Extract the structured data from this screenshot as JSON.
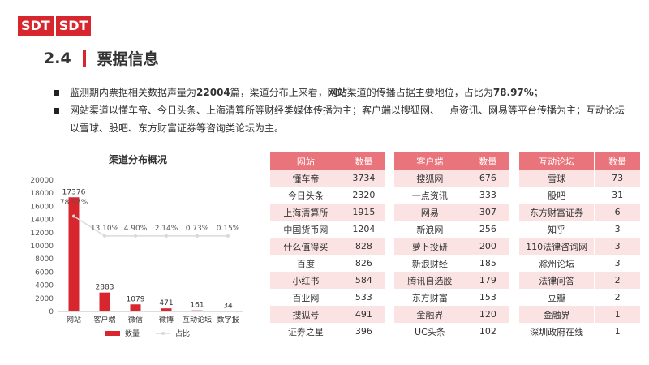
{
  "logo": [
    "SDT",
    "SDT"
  ],
  "section": {
    "number": "2.4",
    "title": "票据信息"
  },
  "bullets": {
    "b1_pre": "监测期内票据相关数据声量为",
    "b1_total": "22004",
    "b1_mid": "篇，渠道分布上来看，",
    "b1_channel": "网站",
    "b1_mid2": "渠道的传播占据主要地位，占比为",
    "b1_pct": "78.97%",
    "b1_end": "；",
    "b2": "网站渠道以懂车帝、今日头条、上海清算所等财经类媒体传播为主；客户端以搜狐网、一点资讯、网易等平台传播为主；互动论坛以雪球、股吧、东方财富证券等咨询类论坛为主。"
  },
  "chart_data": {
    "type": "bar",
    "title": "渠道分布概况",
    "categories": [
      "网站",
      "客户端",
      "微信",
      "微博",
      "互动论坛",
      "数字报"
    ],
    "series": [
      {
        "name": "数量",
        "values": [
          17376,
          2883,
          1079,
          471,
          161,
          34
        ]
      },
      {
        "name": "占比",
        "values": [
          "78.97%",
          "13.10%",
          "4.90%",
          "2.14%",
          "0.73%",
          "0.15%"
        ]
      }
    ],
    "ylim": [
      0,
      20000
    ],
    "yticks": [
      0,
      2000,
      4000,
      6000,
      8000,
      10000,
      12000,
      14000,
      16000,
      18000,
      20000
    ],
    "colors": {
      "bar": "#d7262e",
      "line": "#d9d9d9"
    }
  },
  "tables": [
    {
      "headers": [
        "网站",
        "数量"
      ],
      "rows": [
        [
          "懂车帝",
          "3734"
        ],
        [
          "今日头条",
          "2320"
        ],
        [
          "上海清算所",
          "1915"
        ],
        [
          "中国货币网",
          "1204"
        ],
        [
          "什么值得买",
          "828"
        ],
        [
          "百度",
          "826"
        ],
        [
          "小红书",
          "584"
        ],
        [
          "百业网",
          "533"
        ],
        [
          "搜狐号",
          "491"
        ],
        [
          "证券之星",
          "396"
        ]
      ]
    },
    {
      "headers": [
        "客户端",
        "数量"
      ],
      "rows": [
        [
          "搜狐网",
          "676"
        ],
        [
          "一点资讯",
          "333"
        ],
        [
          "网易",
          "307"
        ],
        [
          "新浪网",
          "256"
        ],
        [
          "萝卜投研",
          "200"
        ],
        [
          "新浪财经",
          "185"
        ],
        [
          "腾讯自选股",
          "179"
        ],
        [
          "东方财富",
          "153"
        ],
        [
          "金融界",
          "120"
        ],
        [
          "UC头条",
          "102"
        ]
      ]
    },
    {
      "headers": [
        "互动论坛",
        "数量"
      ],
      "rows": [
        [
          "雪球",
          "73"
        ],
        [
          "股吧",
          "31"
        ],
        [
          "东方财富证券",
          "6"
        ],
        [
          "知乎",
          "3"
        ],
        [
          "110法律咨询网",
          "3"
        ],
        [
          "滁州论坛",
          "3"
        ],
        [
          "法律问答",
          "2"
        ],
        [
          "豆瓣",
          "2"
        ],
        [
          "金融界",
          "1"
        ],
        [
          "深圳政府在线",
          "1"
        ]
      ]
    }
  ]
}
